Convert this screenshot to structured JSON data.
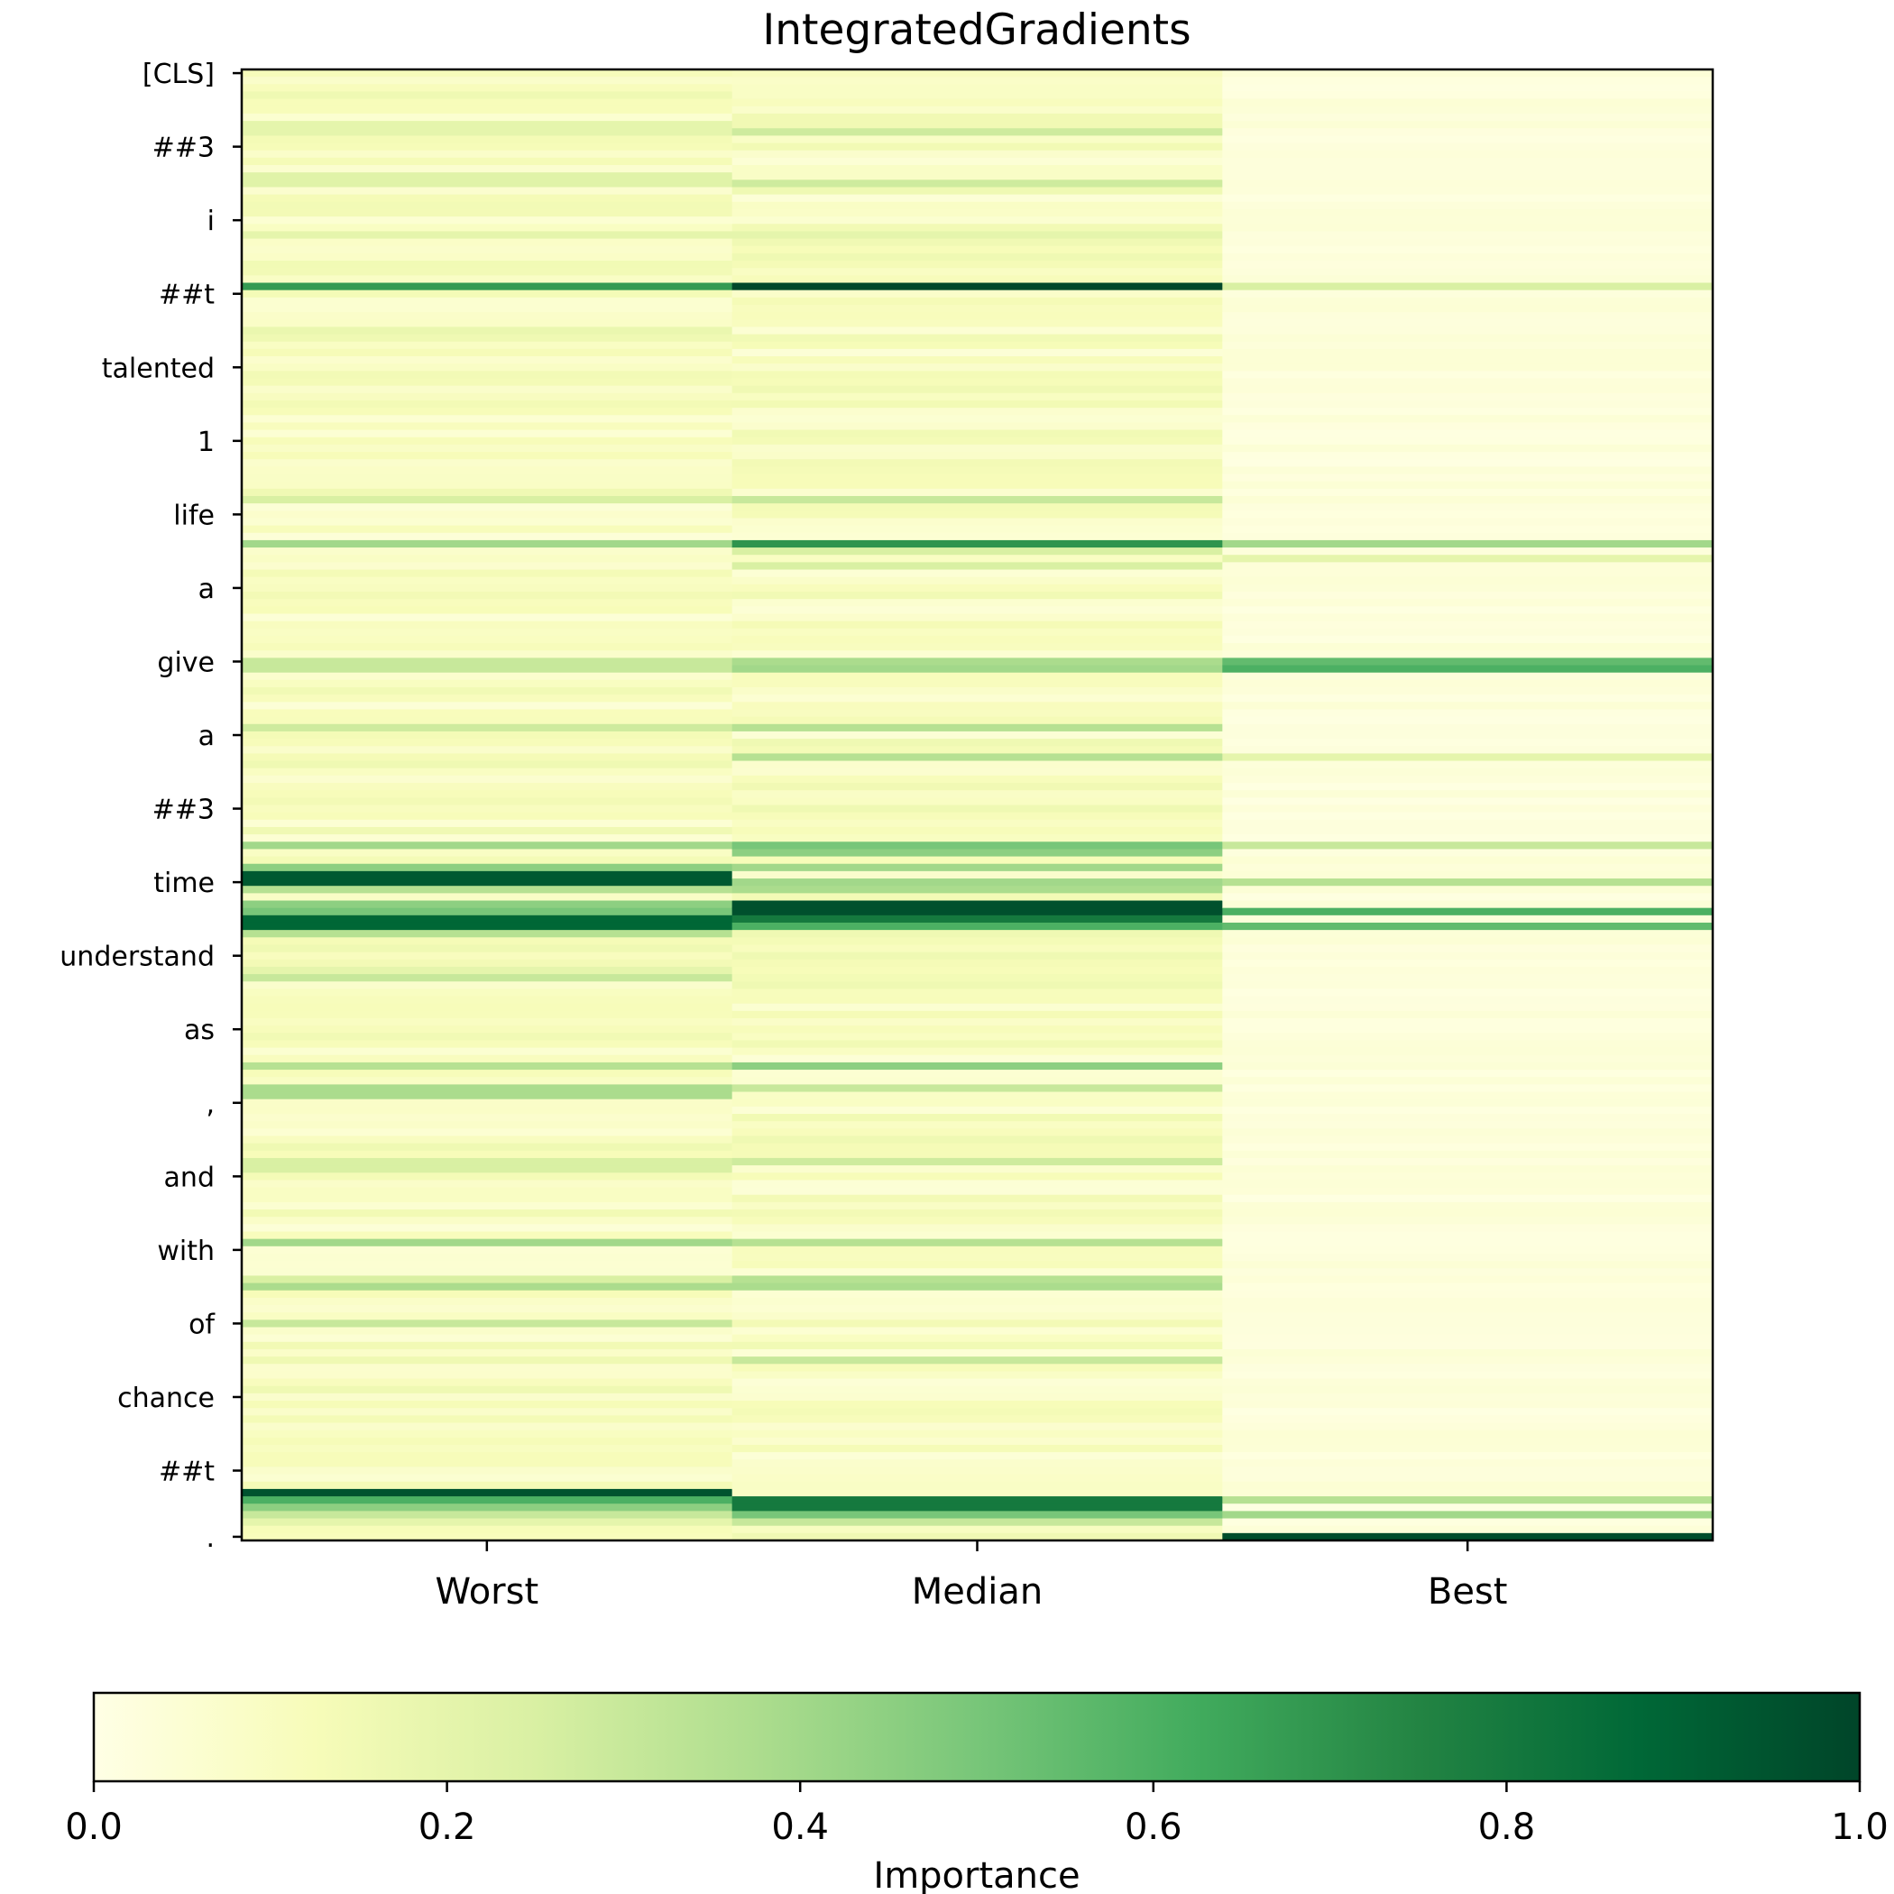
{
  "chart_data": {
    "type": "heatmap",
    "title": "IntegratedGradients",
    "columns": [
      "Worst",
      "Median",
      "Best"
    ],
    "row_count": 200,
    "y_tick_labels": [
      "[CLS]",
      "##3",
      "i",
      "##t",
      "talented",
      "1",
      "life",
      "a",
      "give",
      "a",
      "##3",
      "time",
      "understand",
      "as",
      ",",
      "and",
      "with",
      "of",
      "chance",
      "##t",
      "."
    ],
    "y_tick_rows": [
      0,
      10,
      20,
      30,
      40,
      50,
      60,
      70,
      80,
      90,
      100,
      110,
      120,
      130,
      140,
      150,
      160,
      170,
      180,
      190,
      200
    ],
    "colormap": "Greens",
    "colormap_stops": [
      "#ffffe5",
      "#f7fcb9",
      "#d9f0a3",
      "#addd8e",
      "#78c679",
      "#41ab5d",
      "#238443",
      "#006837",
      "#004529"
    ],
    "colorbar": {
      "label": "Importance",
      "range": [
        0,
        1
      ],
      "ticks": [
        "0.0",
        "0.2",
        "0.4",
        "0.6",
        "0.8",
        "1.0"
      ],
      "orientation": "horizontal"
    },
    "background_level": [
      0.1,
      0.1,
      0.03
    ],
    "series": [
      {
        "name": "Worst",
        "highlights": [
          [
            7,
            0.2
          ],
          [
            8,
            0.2
          ],
          [
            14,
            0.22
          ],
          [
            15,
            0.22
          ],
          [
            22,
            0.2
          ],
          [
            29,
            0.68
          ],
          [
            35,
            0.18
          ],
          [
            58,
            0.25
          ],
          [
            64,
            0.4
          ],
          [
            80,
            0.3
          ],
          [
            81,
            0.3
          ],
          [
            89,
            0.28
          ],
          [
            105,
            0.4
          ],
          [
            108,
            0.45
          ],
          [
            109,
            0.93
          ],
          [
            110,
            0.93
          ],
          [
            111,
            0.35
          ],
          [
            113,
            0.45
          ],
          [
            114,
            0.5
          ],
          [
            115,
            0.88
          ],
          [
            116,
            0.88
          ],
          [
            117,
            0.35
          ],
          [
            122,
            0.2
          ],
          [
            123,
            0.3
          ],
          [
            135,
            0.35
          ],
          [
            138,
            0.38
          ],
          [
            139,
            0.38
          ],
          [
            148,
            0.25
          ],
          [
            149,
            0.25
          ],
          [
            159,
            0.4
          ],
          [
            164,
            0.25
          ],
          [
            165,
            0.38
          ],
          [
            170,
            0.3
          ],
          [
            193,
            0.95
          ],
          [
            194,
            0.6
          ],
          [
            195,
            0.45
          ],
          [
            196,
            0.3
          ],
          [
            197,
            0.2
          ]
        ]
      },
      {
        "name": "Median",
        "highlights": [
          [
            8,
            0.28
          ],
          [
            15,
            0.28
          ],
          [
            22,
            0.2
          ],
          [
            29,
            0.99
          ],
          [
            58,
            0.3
          ],
          [
            64,
            0.7
          ],
          [
            65,
            0.25
          ],
          [
            67,
            0.25
          ],
          [
            80,
            0.38
          ],
          [
            81,
            0.4
          ],
          [
            89,
            0.35
          ],
          [
            93,
            0.35
          ],
          [
            105,
            0.5
          ],
          [
            106,
            0.45
          ],
          [
            108,
            0.4
          ],
          [
            110,
            0.4
          ],
          [
            111,
            0.38
          ],
          [
            113,
            0.96
          ],
          [
            114,
            0.96
          ],
          [
            115,
            0.8
          ],
          [
            116,
            0.6
          ],
          [
            135,
            0.45
          ],
          [
            138,
            0.3
          ],
          [
            148,
            0.28
          ],
          [
            159,
            0.35
          ],
          [
            164,
            0.35
          ],
          [
            165,
            0.38
          ],
          [
            175,
            0.3
          ],
          [
            194,
            0.8
          ],
          [
            195,
            0.8
          ],
          [
            196,
            0.5
          ],
          [
            197,
            0.3
          ]
        ]
      },
      {
        "name": "Best",
        "highlights": [
          [
            29,
            0.25
          ],
          [
            64,
            0.4
          ],
          [
            66,
            0.2
          ],
          [
            80,
            0.55
          ],
          [
            81,
            0.6
          ],
          [
            93,
            0.2
          ],
          [
            105,
            0.3
          ],
          [
            110,
            0.35
          ],
          [
            114,
            0.6
          ],
          [
            116,
            0.55
          ],
          [
            194,
            0.35
          ],
          [
            196,
            0.4
          ],
          [
            199,
            0.97
          ]
        ]
      }
    ]
  }
}
